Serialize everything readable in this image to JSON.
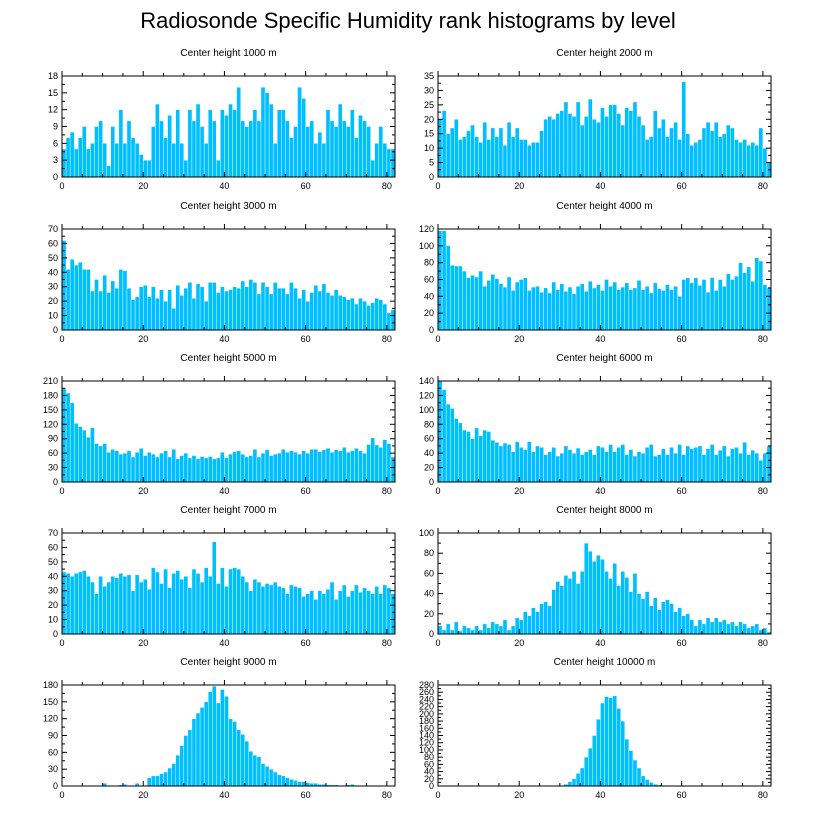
{
  "title": "Radiosonde Specific Humidity rank histograms by level",
  "chart_data": [
    {
      "type": "bar",
      "title": "Center height 1000 m",
      "xlim": [
        0,
        82
      ],
      "ylim": [
        0,
        18
      ],
      "xticks": [
        0,
        20,
        40,
        60,
        80
      ],
      "yticks": [
        0,
        3,
        6,
        9,
        12,
        15,
        18
      ],
      "values": [
        5,
        7,
        8,
        5,
        7,
        9,
        5,
        6,
        9,
        10,
        6,
        2,
        9,
        6,
        12,
        6,
        10,
        7,
        6,
        4,
        3,
        3,
        9,
        13,
        10,
        7,
        11,
        6,
        12,
        6,
        3,
        12,
        10,
        13,
        9,
        6,
        12,
        10,
        3,
        12,
        11,
        13,
        12,
        16,
        10,
        9,
        10,
        12,
        10,
        16,
        15,
        13,
        6,
        12,
        12,
        10,
        7,
        9,
        16,
        14,
        9,
        10,
        6,
        8,
        6,
        12,
        10,
        9,
        13,
        10,
        9,
        12,
        7,
        11,
        10,
        9,
        3,
        6,
        9,
        6,
        5,
        5
      ]
    },
    {
      "type": "bar",
      "title": "Center height 2000 m",
      "xlim": [
        0,
        82
      ],
      "ylim": [
        0,
        35
      ],
      "xticks": [
        0,
        20,
        40,
        60,
        80
      ],
      "yticks": [
        0,
        5,
        10,
        15,
        20,
        25,
        30,
        35
      ],
      "values": [
        20,
        23,
        15,
        17,
        20,
        13,
        14,
        16,
        18,
        14,
        12,
        19,
        13,
        17,
        14,
        17,
        11,
        19,
        14,
        17,
        13,
        13,
        11,
        12,
        12,
        16,
        20,
        21,
        20,
        22,
        23,
        26,
        22,
        21,
        26,
        18,
        21,
        27,
        20,
        19,
        24,
        21,
        25,
        25,
        22,
        18,
        24,
        23,
        26,
        21,
        18,
        13,
        14,
        23,
        17,
        20,
        14,
        17,
        19,
        13,
        33,
        15,
        11,
        12,
        13,
        17,
        19,
        16,
        19,
        14,
        15,
        18,
        17,
        13,
        12,
        13,
        11,
        12,
        11,
        17,
        10,
        5
      ]
    },
    {
      "type": "bar",
      "title": "Center height 3000 m",
      "xlim": [
        0,
        82
      ],
      "ylim": [
        0,
        70
      ],
      "xticks": [
        0,
        20,
        40,
        60,
        80
      ],
      "yticks": [
        0,
        10,
        20,
        30,
        40,
        50,
        60,
        70
      ],
      "values": [
        62,
        42,
        49,
        45,
        47,
        42,
        42,
        27,
        35,
        27,
        38,
        26,
        34,
        29,
        42,
        41,
        29,
        21,
        23,
        30,
        31,
        23,
        30,
        22,
        28,
        20,
        28,
        15,
        31,
        24,
        29,
        33,
        22,
        32,
        30,
        20,
        33,
        33,
        26,
        30,
        27,
        28,
        30,
        29,
        34,
        30,
        35,
        33,
        25,
        33,
        30,
        25,
        33,
        29,
        29,
        25,
        33,
        29,
        22,
        28,
        20,
        26,
        31,
        27,
        32,
        26,
        24,
        28,
        24,
        23,
        21,
        22,
        18,
        22,
        20,
        17,
        19,
        22,
        21,
        18,
        12,
        14
      ]
    },
    {
      "type": "bar",
      "title": "Center height 4000 m",
      "xlim": [
        0,
        82
      ],
      "ylim": [
        0,
        120
      ],
      "xticks": [
        0,
        20,
        40,
        60,
        80
      ],
      "yticks": [
        0,
        20,
        40,
        60,
        80,
        100,
        120
      ],
      "values": [
        118,
        118,
        100,
        77,
        76,
        76,
        70,
        62,
        65,
        63,
        70,
        52,
        59,
        66,
        61,
        55,
        51,
        63,
        47,
        57,
        60,
        62,
        47,
        51,
        52,
        45,
        50,
        44,
        57,
        48,
        55,
        46,
        51,
        43,
        52,
        55,
        46,
        58,
        50,
        54,
        47,
        60,
        52,
        57,
        48,
        51,
        56,
        48,
        50,
        59,
        48,
        52,
        44,
        56,
        49,
        47,
        54,
        48,
        52,
        40,
        60,
        62,
        56,
        62,
        53,
        60,
        45,
        62,
        47,
        60,
        52,
        67,
        60,
        64,
        80,
        68,
        75,
        58,
        86,
        82,
        54,
        50
      ]
    },
    {
      "type": "bar",
      "title": "Center height 5000 m",
      "xlim": [
        0,
        82
      ],
      "ylim": [
        0,
        210
      ],
      "xticks": [
        0,
        20,
        40,
        60,
        80
      ],
      "yticks": [
        0,
        30,
        60,
        90,
        120,
        150,
        180,
        210
      ],
      "values": [
        195,
        185,
        165,
        122,
        115,
        108,
        93,
        113,
        80,
        75,
        80,
        62,
        68,
        65,
        58,
        60,
        65,
        52,
        62,
        70,
        55,
        62,
        58,
        52,
        60,
        65,
        52,
        68,
        48,
        55,
        60,
        50,
        55,
        48,
        53,
        50,
        53,
        48,
        50,
        62,
        50,
        58,
        63,
        65,
        58,
        52,
        55,
        68,
        52,
        60,
        67,
        55,
        58,
        60,
        68,
        62,
        65,
        62,
        58,
        65,
        60,
        68,
        68,
        63,
        67,
        70,
        62,
        67,
        65,
        72,
        62,
        65,
        70,
        65,
        60,
        78,
        92,
        77,
        72,
        88,
        80,
        52
      ]
    },
    {
      "type": "bar",
      "title": "Center height 6000 m",
      "xlim": [
        0,
        82
      ],
      "ylim": [
        0,
        140
      ],
      "xticks": [
        0,
        20,
        40,
        60,
        80
      ],
      "yticks": [
        0,
        20,
        40,
        60,
        80,
        100,
        120,
        140
      ],
      "values": [
        140,
        128,
        108,
        102,
        88,
        82,
        72,
        70,
        60,
        75,
        64,
        72,
        70,
        58,
        55,
        50,
        54,
        52,
        42,
        56,
        48,
        45,
        56,
        42,
        50,
        48,
        38,
        42,
        48,
        36,
        40,
        50,
        45,
        40,
        47,
        38,
        42,
        45,
        38,
        50,
        48,
        42,
        52,
        42,
        48,
        52,
        38,
        45,
        36,
        42,
        40,
        48,
        52,
        36,
        38,
        46,
        38,
        48,
        40,
        52,
        38,
        50,
        46,
        48,
        50,
        38,
        46,
        52,
        38,
        44,
        50,
        36,
        46,
        48,
        40,
        55,
        38,
        44,
        40,
        30,
        40,
        50
      ]
    },
    {
      "type": "bar",
      "title": "Center height 7000 m",
      "xlim": [
        0,
        82
      ],
      "ylim": [
        0,
        70
      ],
      "xticks": [
        0,
        20,
        40,
        60,
        80
      ],
      "yticks": [
        0,
        10,
        20,
        30,
        40,
        50,
        60,
        70
      ],
      "values": [
        43,
        42,
        40,
        42,
        43,
        44,
        40,
        36,
        28,
        40,
        33,
        36,
        40,
        39,
        42,
        40,
        41,
        30,
        41,
        36,
        38,
        31,
        46,
        43,
        35,
        45,
        32,
        42,
        44,
        38,
        40,
        32,
        45,
        42,
        36,
        46,
        40,
        64,
        35,
        46,
        33,
        45,
        46,
        45,
        40,
        36,
        30,
        38,
        36,
        33,
        35,
        34,
        36,
        33,
        32,
        28,
        34,
        33,
        32,
        26,
        28,
        30,
        24,
        30,
        28,
        31,
        36,
        24,
        30,
        34,
        26,
        30,
        34,
        29,
        32,
        30,
        28,
        33,
        28,
        34,
        32,
        28
      ]
    },
    {
      "type": "bar",
      "title": "Center height 8000 m",
      "xlim": [
        0,
        82
      ],
      "ylim": [
        0,
        100
      ],
      "xticks": [
        0,
        20,
        40,
        60,
        80
      ],
      "yticks": [
        0,
        20,
        40,
        60,
        80,
        100
      ],
      "values": [
        8,
        4,
        10,
        4,
        12,
        3,
        8,
        6,
        4,
        8,
        4,
        10,
        6,
        12,
        10,
        8,
        14,
        4,
        8,
        16,
        14,
        22,
        18,
        26,
        22,
        30,
        32,
        28,
        44,
        52,
        48,
        58,
        55,
        62,
        50,
        62,
        90,
        82,
        72,
        78,
        74,
        62,
        55,
        70,
        48,
        62,
        56,
        42,
        60,
        40,
        35,
        42,
        28,
        36,
        24,
        32,
        34,
        30,
        22,
        26,
        18,
        20,
        14,
        8,
        14,
        10,
        16,
        12,
        16,
        12,
        14,
        10,
        12,
        8,
        12,
        10,
        6,
        8,
        10,
        4,
        6,
        2
      ]
    },
    {
      "type": "bar",
      "title": "Center height 9000 m",
      "xlim": [
        0,
        82
      ],
      "ylim": [
        0,
        180
      ],
      "xticks": [
        0,
        20,
        40,
        60,
        80
      ],
      "yticks": [
        0,
        30,
        60,
        90,
        120,
        150,
        180
      ],
      "values": [
        0,
        0,
        0,
        0,
        0,
        0,
        0,
        0,
        0,
        0,
        5,
        0,
        0,
        0,
        2,
        3,
        0,
        0,
        5,
        0,
        0,
        15,
        18,
        18,
        22,
        25,
        32,
        40,
        55,
        72,
        90,
        100,
        120,
        130,
        140,
        150,
        168,
        178,
        148,
        172,
        160,
        120,
        115,
        100,
        92,
        80,
        62,
        55,
        52,
        40,
        35,
        30,
        25,
        20,
        18,
        15,
        12,
        10,
        8,
        8,
        6,
        5,
        5,
        3,
        3,
        2,
        2,
        2,
        1,
        1,
        2,
        3,
        1,
        1,
        0,
        0,
        0,
        0,
        0,
        0,
        0,
        0
      ]
    },
    {
      "type": "bar",
      "title": "Center height 10000 m",
      "xlim": [
        0,
        82
      ],
      "ylim": [
        0,
        280
      ],
      "xticks": [
        0,
        20,
        40,
        60,
        80
      ],
      "yticks": [
        0,
        20,
        40,
        60,
        80,
        100,
        120,
        140,
        160,
        180,
        200,
        220,
        240,
        260,
        280
      ],
      "values": [
        0,
        0,
        0,
        0,
        0,
        0,
        0,
        0,
        0,
        0,
        0,
        0,
        0,
        0,
        0,
        0,
        0,
        0,
        0,
        0,
        0,
        0,
        0,
        0,
        0,
        0,
        0,
        0,
        0,
        0,
        2,
        5,
        12,
        20,
        35,
        50,
        80,
        105,
        140,
        185,
        230,
        248,
        245,
        250,
        215,
        180,
        130,
        98,
        72,
        50,
        28,
        18,
        10,
        5,
        3,
        2,
        0,
        0,
        0,
        0,
        0,
        0,
        0,
        0,
        0,
        0,
        0,
        0,
        0,
        0,
        0,
        0,
        0,
        0,
        0,
        0,
        0,
        0,
        0,
        0,
        0,
        0
      ]
    }
  ]
}
